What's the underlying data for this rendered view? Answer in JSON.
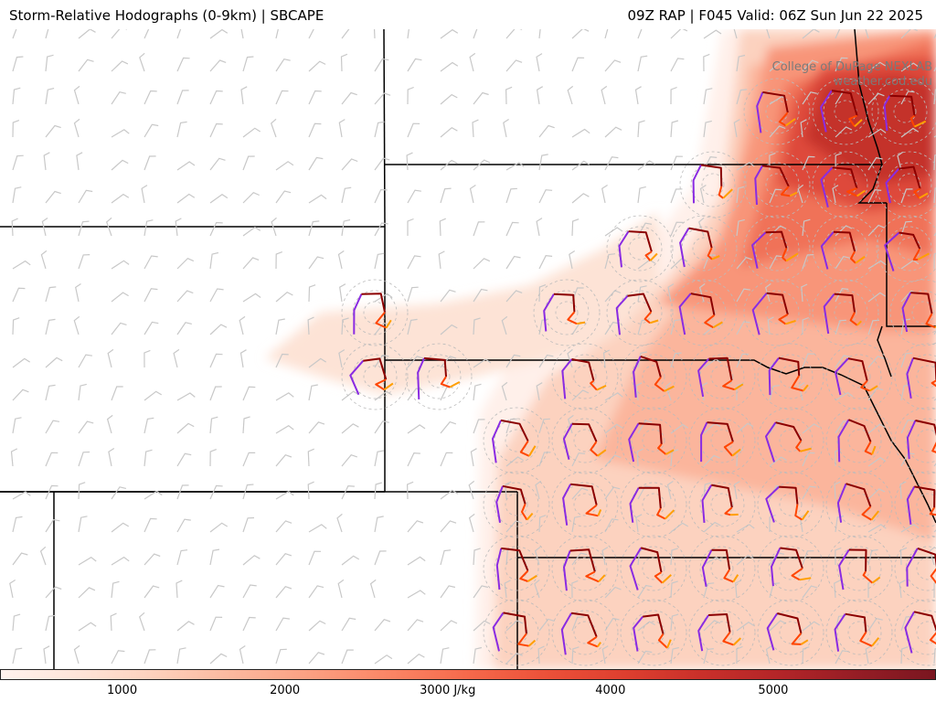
{
  "header": {
    "title_left": "Storm-Relative Hodographs (0-9km) | SBCAPE",
    "title_right": "09Z RAP | F045 Valid: 06Z Sun Jun 22 2025"
  },
  "watermark": {
    "line1": "College of DuPage NEXLAB",
    "line2": "weather.cod.edu"
  },
  "colorbar": {
    "colors": [
      "#fff3ee",
      "#fee4d8",
      "#fdd0bb",
      "#fcb79d",
      "#fc9f81",
      "#fb8565",
      "#f6694b",
      "#ec5139",
      "#de3f2f",
      "#c9302a",
      "#b32528",
      "#951d25",
      "#7a1620"
    ],
    "ticks": [
      {
        "value": 1000,
        "label": "1000"
      },
      {
        "value": 2000,
        "label": "2000"
      },
      {
        "value": 3000,
        "label": "3000 J/kg"
      },
      {
        "value": 4000,
        "label": "4000"
      },
      {
        "value": 5000,
        "label": "5000"
      }
    ],
    "range": [
      250,
      6000
    ]
  },
  "legend_colors": {
    "hodo_0_1km": "#ff9f00",
    "hodo_1_3km": "#ff4500",
    "hodo_3_6km": "#8b0000",
    "hodo_6_9km": "#8a2be2",
    "barb": "#c8c8c8",
    "border": "#000000"
  }
}
